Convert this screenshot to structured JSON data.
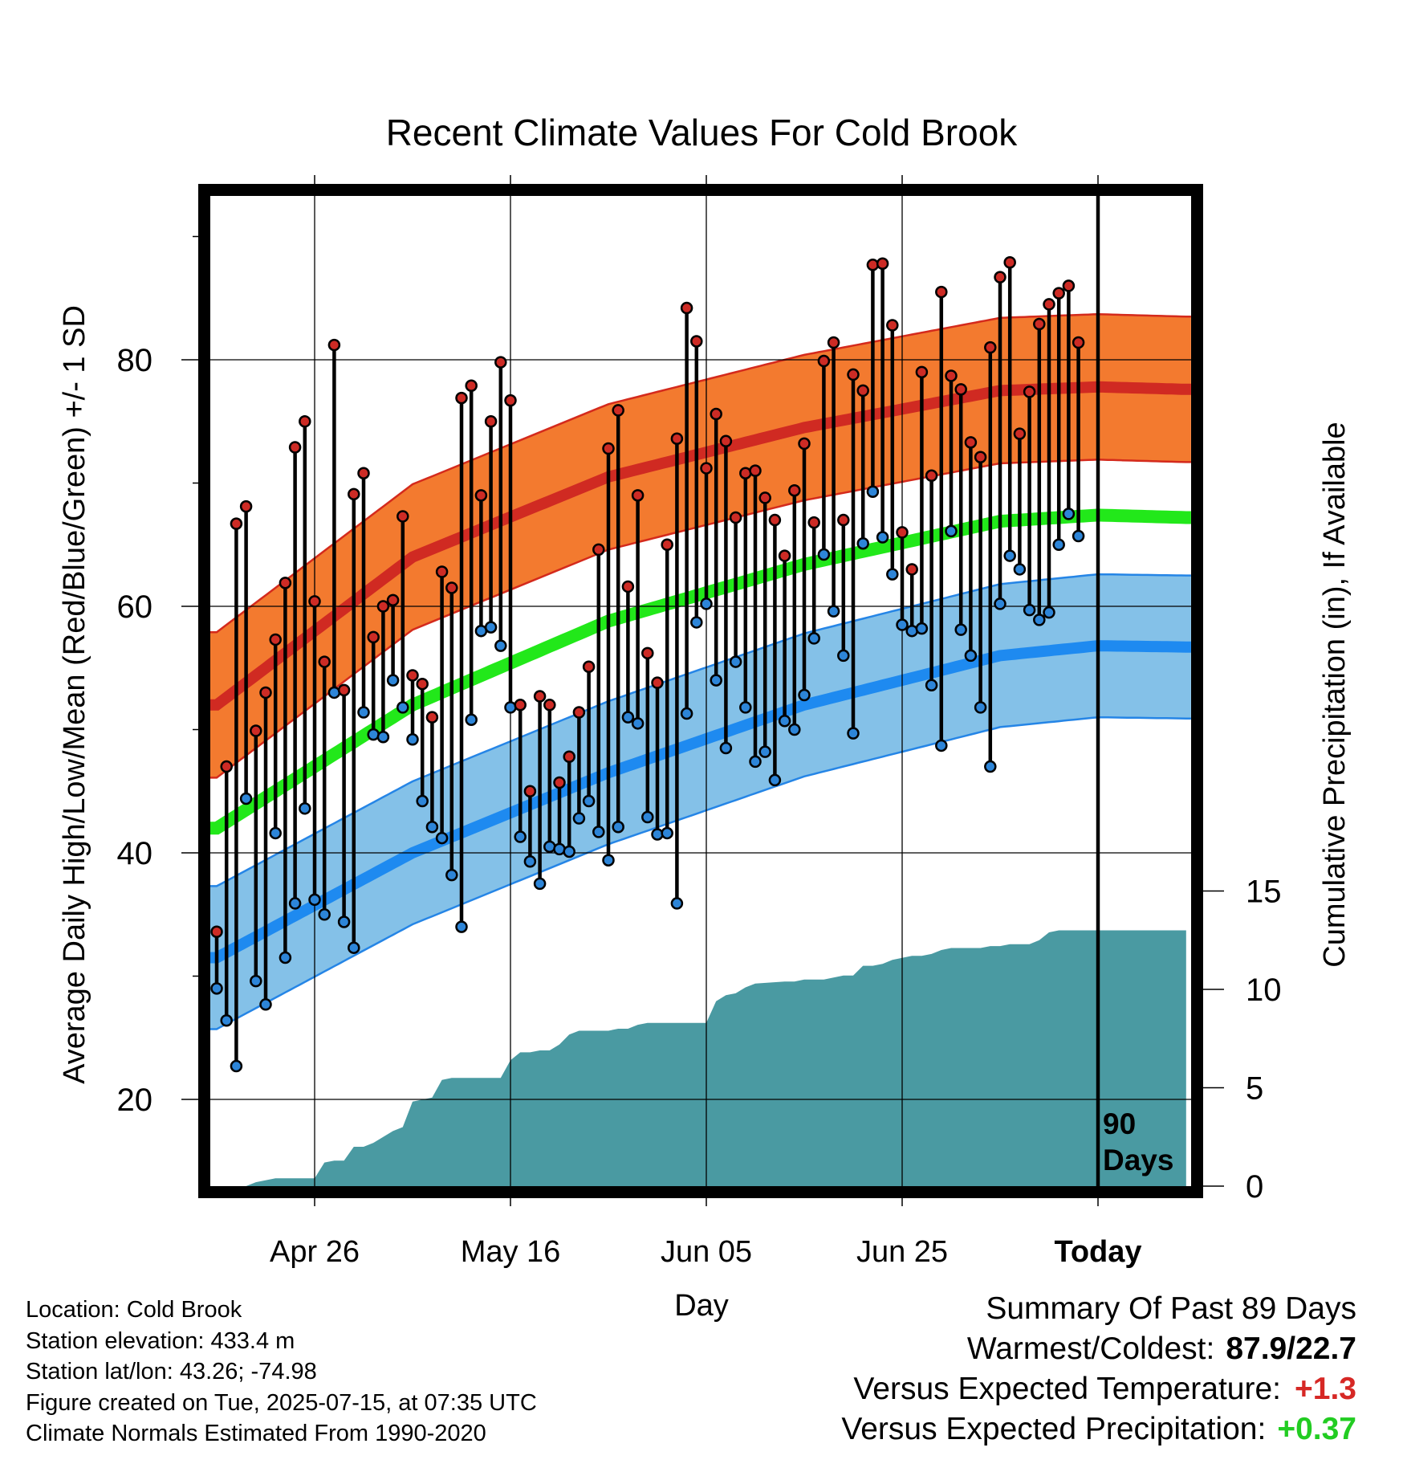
{
  "title": "Recent Climate Values For Cold Brook",
  "chart_data": {
    "type": "line",
    "title": "Recent Climate Values For Cold Brook",
    "xlabel": "Day",
    "ylabel": "Average Daily High/Low/Mean (Red/Blue/Green) +/- 1 SD",
    "y2label": "Cumulative Precipitation (in), If Available",
    "ylim": [
      12.5,
      92.5
    ],
    "y2lim": [
      0,
      80
    ],
    "y_ticks": [
      20,
      40,
      60,
      80
    ],
    "y2_ticks": [
      0,
      5,
      10,
      15
    ],
    "x_tick_labels": [
      {
        "label": "Apr 26",
        "day": 10
      },
      {
        "label": "May 16",
        "day": 30
      },
      {
        "label": "Jun 05",
        "day": 50
      },
      {
        "label": "Jun 25",
        "day": 70
      },
      {
        "label": "Today",
        "day": 90
      }
    ],
    "today_marker": {
      "day": 90,
      "label_line1": "90",
      "label_line2": "Days"
    },
    "xlim": [
      -10,
      99.5
    ],
    "grid": true,
    "colors": {
      "high_band": "#f37a2f",
      "high_band_edge": "#d42a1c",
      "high_mean": "#d02a22",
      "low_band": "#84c1e8",
      "low_band_edge": "#2585e6",
      "low_mean": "#1e8af0",
      "mean": "#22e81a",
      "precip": "#4a9aa2",
      "high_dot": "#cd2b25",
      "low_dot": "#2d85d8",
      "positive_temp": "#d62825",
      "positive_precip": "#22cc22"
    },
    "normals": {
      "x": [
        0,
        20,
        40,
        60,
        80,
        90,
        99
      ],
      "high_mean": [
        52.0,
        64.0,
        70.5,
        74.5,
        77.5,
        77.8,
        77.6
      ],
      "high_sd": 5.9,
      "low_mean": [
        31.5,
        40.0,
        46.5,
        52.0,
        56.0,
        56.8,
        56.7
      ],
      "low_sd": 5.8,
      "mean": [
        42.0,
        52.0,
        58.8,
        63.4,
        66.9,
        67.4,
        67.2
      ]
    },
    "series": [
      {
        "name": "High",
        "values": [
          33.6,
          47,
          66.7,
          68.1,
          49.9,
          53,
          57.3,
          61.9,
          72.9,
          75,
          60.4,
          55.5,
          81.2,
          53.2,
          69.1,
          70.8,
          57.5,
          60,
          60.5,
          67.3,
          54.4,
          53.7,
          51,
          62.8,
          61.5,
          76.9,
          77.9,
          69,
          75,
          79.8,
          76.7,
          52,
          45,
          52.7,
          52,
          45.7,
          47.8,
          51.4,
          55.1,
          64.6,
          72.8,
          75.9,
          61.6,
          69,
          56.2,
          53.8,
          65,
          73.6,
          84.2,
          81.5,
          71.2,
          75.6,
          73.4,
          67.2,
          70.8,
          71,
          68.8,
          67,
          64.1,
          69.4,
          73.2,
          66.8,
          79.9,
          81.4,
          67,
          78.8,
          77.5,
          87.7,
          87.8,
          82.8,
          66,
          63,
          79,
          70.6,
          85.5,
          78.7,
          77.6,
          73.3,
          72.1,
          81,
          86.7,
          87.9,
          74,
          77.4,
          82.9,
          84.5,
          85.4,
          86,
          81.4
        ]
      },
      {
        "name": "Low",
        "values": [
          29,
          26.4,
          22.7,
          44.4,
          29.6,
          27.7,
          41.6,
          31.5,
          35.9,
          43.6,
          36.2,
          35,
          53,
          34.4,
          32.3,
          51.4,
          49.6,
          49.4,
          54,
          51.8,
          49.2,
          44.2,
          42.1,
          41.2,
          38.2,
          34,
          50.8,
          58,
          58.3,
          56.8,
          51.8,
          41.3,
          39.3,
          37.5,
          40.5,
          40.3,
          40.1,
          42.8,
          44.2,
          41.7,
          39.4,
          42.1,
          51,
          50.5,
          42.9,
          41.5,
          41.6,
          35.9,
          51.3,
          58.7,
          60.2,
          54,
          48.5,
          55.5,
          51.8,
          47.4,
          48.2,
          45.9,
          50.7,
          50,
          52.8,
          57.4,
          64.2,
          59.6,
          56,
          49.7,
          65.1,
          69.3,
          65.6,
          62.6,
          58.5,
          58,
          58.2,
          53.6,
          48.7,
          66.1,
          58.1,
          56,
          51.8,
          47,
          60.2,
          64.1,
          63,
          59.7,
          58.9,
          59.5,
          65,
          67.5,
          65.7
        ]
      }
    ],
    "precip": {
      "x": [
        0,
        3,
        4,
        6,
        7,
        9,
        10,
        11,
        12,
        13,
        14,
        15,
        16,
        17,
        18,
        19,
        20,
        21,
        22,
        23,
        24,
        26,
        27,
        28,
        29,
        30,
        31,
        32,
        33,
        34,
        35,
        36,
        37,
        38,
        39,
        40,
        41,
        42,
        43,
        44,
        46,
        47,
        48,
        49,
        50,
        51,
        52,
        53,
        54,
        55,
        58,
        59,
        60,
        61,
        62,
        63,
        64,
        65,
        66,
        67,
        68,
        69,
        70,
        71,
        72,
        73,
        74,
        75,
        76,
        77,
        78,
        79,
        80,
        81,
        82,
        83,
        84,
        85,
        86,
        87,
        99
      ],
      "values": [
        0,
        0,
        0.2,
        0.4,
        0.4,
        0.4,
        0.4,
        1.2,
        1.3,
        1.3,
        2,
        2,
        2.2,
        2.5,
        2.8,
        3,
        4.3,
        4.4,
        4.5,
        5.4,
        5.5,
        5.5,
        5.5,
        5.5,
        5.5,
        6.4,
        6.8,
        6.8,
        6.9,
        6.9,
        7.2,
        7.7,
        7.9,
        7.9,
        7.9,
        7.9,
        8,
        8,
        8.2,
        8.3,
        8.3,
        8.3,
        8.3,
        8.3,
        8.3,
        9.4,
        9.7,
        9.8,
        10.1,
        10.3,
        10.4,
        10.4,
        10.5,
        10.5,
        10.5,
        10.6,
        10.7,
        10.7,
        11.2,
        11.2,
        11.3,
        11.5,
        11.6,
        11.7,
        11.7,
        11.8,
        12,
        12.1,
        12.1,
        12.1,
        12.1,
        12.2,
        12.2,
        12.3,
        12.3,
        12.3,
        12.5,
        12.9,
        13,
        13,
        13
      ]
    }
  },
  "axes": {
    "ytick_labels": [
      "20",
      "40",
      "60",
      "80"
    ],
    "y2tick_labels": [
      "0",
      "5",
      "10",
      "15"
    ],
    "xlabel": "Day",
    "ylabel": "Average Daily High/Low/Mean (Red/Blue/Green) +/- 1 SD",
    "y2label": "Cumulative Precipitation (in), If Available"
  },
  "footer": {
    "location": "Location: Cold Brook",
    "elevation": "Station elevation: 433.4 m",
    "latlon": "Station lat/lon: 43.26; -74.98",
    "created": "Figure created on Tue, 2025-07-15, at 07:35 UTC",
    "normals": "Climate Normals Estimated From 1990-2020"
  },
  "summary": {
    "heading": "Summary Of Past 89 Days",
    "warmest_label": "Warmest/Coldest:",
    "warmest_value": "87.9/22.7",
    "temp_label": "Versus Expected Temperature:",
    "temp_value": "+1.3",
    "precip_label": "Versus Expected Precipitation:",
    "precip_value": "+0.37"
  }
}
